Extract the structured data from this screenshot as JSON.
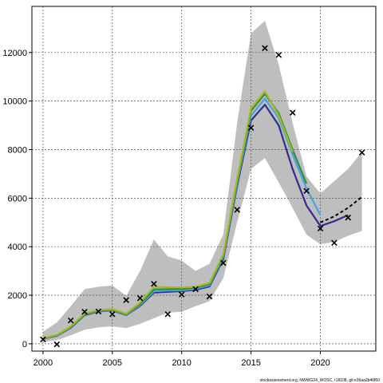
{
  "chart_data": {
    "type": "line",
    "title": "",
    "xlabel": "",
    "ylabel": "",
    "xlim": [
      1999.2,
      2024.0
    ],
    "ylim": [
      -300,
      13900
    ],
    "grid": true,
    "xticks": [
      2000,
      2005,
      2010,
      2015,
      2020
    ],
    "yticks": [
      0,
      2000,
      4000,
      6000,
      8000,
      10000,
      12000
    ],
    "credit": "stockassessment.org, NWWG24_WOSC, r18108, git:e36aa2b46f60",
    "colors": {
      "band": "#bebebe",
      "grid": "#555555",
      "axis": "#000000"
    },
    "confidence_band": {
      "x": [
        2000,
        2001,
        2002,
        2003,
        2004,
        2005,
        2006,
        2007,
        2008,
        2009,
        2010,
        2011,
        2012,
        2013,
        2014,
        2015,
        2016,
        2017,
        2018,
        2019,
        2020,
        2021,
        2022,
        2023
      ],
      "lower": [
        80,
        150,
        350,
        580,
        680,
        720,
        650,
        820,
        1050,
        1280,
        1320,
        1550,
        1750,
        2700,
        5000,
        7200,
        7650,
        6650,
        5600,
        4500,
        4100,
        4200,
        4450,
        4650
      ],
      "upper": [
        500,
        880,
        1550,
        2250,
        2350,
        2400,
        1970,
        3000,
        4300,
        3600,
        3430,
        3000,
        3300,
        4500,
        9100,
        12800,
        13300,
        11500,
        9100,
        6900,
        6200,
        6700,
        7200,
        7900
      ]
    },
    "series": [
      {
        "color": "#2e2e8c",
        "x": [
          2000,
          2001,
          2002,
          2003,
          2004,
          2005,
          2006,
          2007,
          2008,
          2009,
          2010,
          2011,
          2012,
          2013,
          2014,
          2015,
          2016,
          2017,
          2018,
          2019,
          2020,
          2021,
          2022
        ],
        "values": [
          200,
          330,
          660,
          1180,
          1330,
          1370,
          1180,
          1560,
          2110,
          2140,
          2170,
          2220,
          2360,
          3480,
          6500,
          9200,
          9850,
          9000,
          7200,
          5700,
          4850,
          5050,
          5300
        ]
      },
      {
        "color": "#4aa3df",
        "x": [
          2000,
          2001,
          2002,
          2003,
          2004,
          2005,
          2006,
          2007,
          2008,
          2009,
          2010,
          2011,
          2012,
          2013,
          2014,
          2015,
          2016,
          2017,
          2018,
          2019,
          2020
        ],
        "values": [
          210,
          340,
          680,
          1200,
          1340,
          1380,
          1190,
          1590,
          2160,
          2190,
          2200,
          2260,
          2410,
          3560,
          6600,
          9400,
          10100,
          9300,
          7800,
          6400,
          5300
        ]
      },
      {
        "color": "#2f8f3f",
        "x": [
          2000,
          2001,
          2002,
          2003,
          2004,
          2005,
          2006,
          2007,
          2008,
          2009,
          2010,
          2011,
          2012,
          2013,
          2014,
          2015,
          2016,
          2017,
          2018,
          2019
        ],
        "values": [
          215,
          350,
          700,
          1220,
          1360,
          1400,
          1210,
          1640,
          2240,
          2250,
          2260,
          2310,
          2460,
          3620,
          6700,
          9600,
          10300,
          9500,
          8000,
          6600
        ]
      },
      {
        "color": "#a8b820",
        "x": [
          2000,
          2001,
          2002,
          2003,
          2004,
          2005,
          2006,
          2007,
          2008,
          2009,
          2010,
          2011,
          2012,
          2013,
          2014,
          2015,
          2016,
          2017,
          2018
        ],
        "values": [
          230,
          370,
          720,
          1250,
          1390,
          1430,
          1240,
          1700,
          2350,
          2330,
          2320,
          2350,
          2500,
          3680,
          6800,
          9700,
          10400,
          9400,
          7900
        ]
      },
      {
        "color": "#000000",
        "dashed": true,
        "x": [
          2020,
          2021,
          2022,
          2023
        ],
        "values": [
          5000,
          5250,
          5600,
          6050
        ]
      }
    ],
    "observations": {
      "marker": "x",
      "x": [
        2000,
        2001,
        2002,
        2003,
        2004,
        2005,
        2006,
        2007,
        2008,
        2009,
        2010,
        2011,
        2012,
        2013,
        2014,
        2015,
        2016,
        2017,
        2018,
        2019,
        2020,
        2021,
        2022,
        2023
      ],
      "values": [
        180,
        -20,
        960,
        1320,
        1330,
        1220,
        1800,
        1880,
        2470,
        1220,
        2030,
        2250,
        1950,
        3330,
        5520,
        8900,
        12180,
        11900,
        9520,
        6300,
        4750,
        4160,
        5200,
        7880
      ]
    }
  }
}
